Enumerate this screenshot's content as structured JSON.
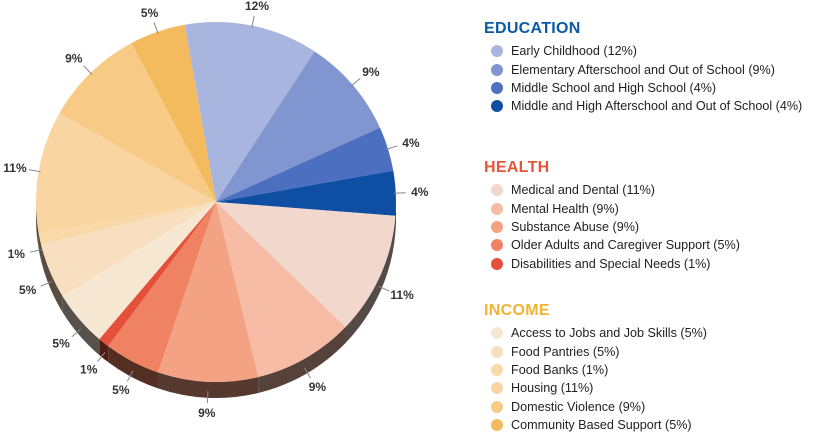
{
  "chart_data": {
    "type": "pie",
    "groups": [
      {
        "name": "EDUCATION",
        "color": "#0b5aa6",
        "items": [
          {
            "label": "Early Childhood (12%)",
            "value": 12,
            "pct_label": "12%",
            "color": "#a8b6df"
          },
          {
            "label": "Elementary Afterschool and Out of School (9%)",
            "value": 9,
            "pct_label": "9%",
            "color": "#8196d0"
          },
          {
            "label": "Middle School and High School (4%)",
            "value": 4,
            "pct_label": "4%",
            "color": "#4d6fc0"
          },
          {
            "label": "Middle and High Afterschool and Out of School (4%)",
            "value": 4,
            "pct_label": "4%",
            "color": "#0e4ea3"
          }
        ]
      },
      {
        "name": "HEALTH",
        "color": "#e4553a",
        "items": [
          {
            "label": "Medical and Dental (11%)",
            "value": 11,
            "pct_label": "11%",
            "color": "#f1d7cc"
          },
          {
            "label": "Mental Health (9%)",
            "value": 9,
            "pct_label": "9%",
            "color": "#f6bca5"
          },
          {
            "label": "Substance Abuse (9%)",
            "value": 9,
            "pct_label": "9%",
            "color": "#f4a284"
          },
          {
            "label": "Older Adults and Caregiver Support (5%)",
            "value": 5,
            "pct_label": "5%",
            "color": "#ef8262"
          },
          {
            "label": "Disabilities and Special Needs (1%)",
            "value": 1,
            "pct_label": "1%",
            "color": "#e4503a"
          }
        ]
      },
      {
        "name": "INCOME",
        "color": "#f2b233",
        "items": [
          {
            "label": "Access to Jobs and Job Skills (5%)",
            "value": 5,
            "pct_label": "5%",
            "color": "#f6e7d2"
          },
          {
            "label": "Food Pantries (5%)",
            "value": 5,
            "pct_label": "5%",
            "color": "#f8dfbf"
          },
          {
            "label": "Food Banks (1%)",
            "value": 1,
            "pct_label": "1%",
            "color": "#f9d9a8"
          },
          {
            "label": "Housing (11%)",
            "value": 11,
            "pct_label": "11%",
            "color": "#f9d5a2"
          },
          {
            "label": "Domestic Violence (9%)",
            "value": 9,
            "pct_label": "9%",
            "color": "#f7ca86"
          },
          {
            "label": "Community Based Support (5%)",
            "value": 5,
            "pct_label": "5%",
            "color": "#f3bb5e"
          }
        ]
      }
    ]
  }
}
